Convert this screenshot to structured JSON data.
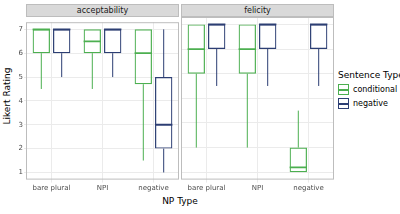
{
  "y_label": "Likert Rating",
  "x_label": "NP Type",
  "legend_title": "Sentence Type",
  "legend": "right",
  "chart_data": [
    {
      "type": "box",
      "title": "acceptability",
      "categories": [
        "bare plural",
        "NPI",
        "negative"
      ],
      "ylim": [
        0.7,
        7.3
      ],
      "yticks": [
        1,
        2,
        3,
        4,
        5,
        6,
        7
      ],
      "grid": true,
      "series": [
        {
          "name": "conditional",
          "color": "#4caf50",
          "min": [
            4.5,
            4.5,
            1.5
          ],
          "q1": [
            6,
            6,
            4.7
          ],
          "median": [
            7,
            6.5,
            6
          ],
          "q3": [
            7,
            7,
            7
          ],
          "max": [
            7,
            7,
            7
          ]
        },
        {
          "name": "negative",
          "color": "#2c3e73",
          "min": [
            5,
            5,
            1
          ],
          "q1": [
            6,
            6,
            2
          ],
          "median": [
            7,
            7,
            3
          ],
          "q3": [
            7,
            7,
            5
          ],
          "max": [
            7,
            7,
            7
          ]
        }
      ]
    },
    {
      "type": "box",
      "title": "felicity",
      "categories": [
        "bare plural",
        "NPI",
        "negative"
      ],
      "ylim": [
        0.7,
        7.3
      ],
      "yticks": [
        1,
        2,
        3,
        4,
        5,
        6,
        7
      ],
      "grid": true,
      "tick_labels": "x",
      "series": [
        {
          "name": "conditional",
          "color": "#4caf50",
          "min": [
            2,
            2,
            1
          ],
          "q1": [
            5,
            5,
            1
          ],
          "median": [
            6,
            6,
            1.2
          ],
          "q3": [
            7,
            7,
            2
          ],
          "max": [
            7,
            7,
            3.5
          ]
        },
        {
          "name": "negative",
          "color": "#2c3e73",
          "min": [
            4.5,
            4.5,
            4.5
          ],
          "q1": [
            6,
            6,
            6
          ],
          "median": [
            7,
            7,
            7
          ],
          "q3": [
            7,
            7,
            7
          ],
          "max": [
            7,
            7,
            7
          ]
        }
      ]
    }
  ]
}
